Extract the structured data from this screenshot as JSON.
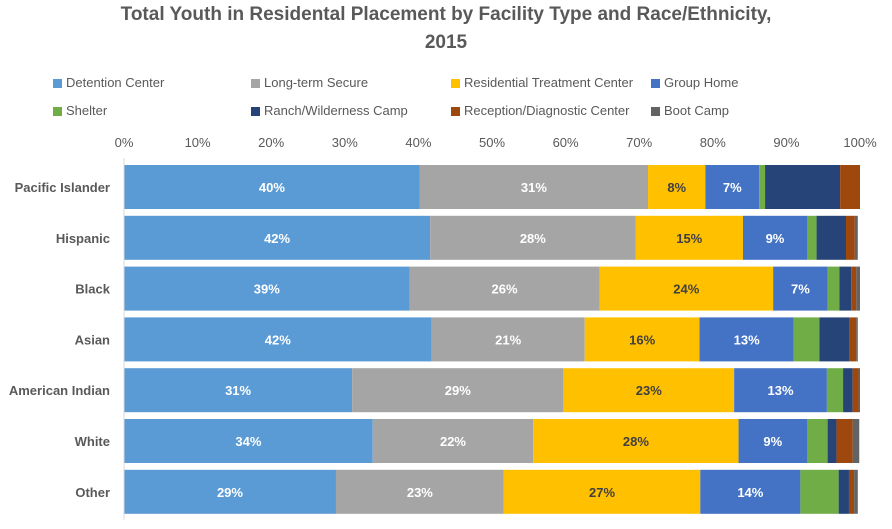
{
  "chart_data": {
    "type": "bar",
    "orientation": "horizontal",
    "stacked": "percent",
    "title_line1": "Total Youth in Residental Placement by Facility Type and Race/Ethnicity,",
    "title_line2": "2015",
    "categories": [
      "Pacific Islander",
      "Hispanic",
      "Black",
      "Asian",
      "American Indian",
      "White",
      "Other"
    ],
    "x_ticks": [
      "0%",
      "10%",
      "20%",
      "30%",
      "40%",
      "50%",
      "60%",
      "70%",
      "80%",
      "90%",
      "100%"
    ],
    "xlim": [
      0,
      100
    ],
    "axis_position": "top",
    "legend_position": "top",
    "grid": false,
    "series": [
      {
        "name": "Detention Center",
        "color": "#5B9BD5",
        "values": [
          40.2,
          41.6,
          38.8,
          41.8,
          31.0,
          33.8,
          28.8
        ]
      },
      {
        "name": "Long-term Secure",
        "color": "#A5A5A5",
        "values": [
          31.0,
          27.9,
          25.8,
          20.8,
          28.7,
          21.8,
          22.8
        ]
      },
      {
        "name": "Residential Treatment Center",
        "color": "#FFC000",
        "values": [
          7.8,
          14.6,
          23.6,
          15.6,
          23.2,
          27.9,
          26.7
        ]
      },
      {
        "name": "Group Home",
        "color": "#4472C4",
        "values": [
          7.3,
          8.7,
          7.4,
          12.8,
          12.6,
          9.3,
          13.6
        ]
      },
      {
        "name": "Shelter",
        "color": "#70AD47",
        "values": [
          0.8,
          1.3,
          1.6,
          3.5,
          2.2,
          2.8,
          5.2
        ]
      },
      {
        "name": "Ranch/Wilderness Camp",
        "color": "#264478",
        "values": [
          10.2,
          4.0,
          1.6,
          4.1,
          1.3,
          1.2,
          1.4
        ]
      },
      {
        "name": "Reception/Diagnostic Center",
        "color": "#9E480E",
        "values": [
          2.7,
          1.2,
          0.7,
          0.9,
          0.8,
          2.2,
          0.7
        ]
      },
      {
        "name": "Boot Camp",
        "color": "#636363",
        "values": [
          0.0,
          0.4,
          0.5,
          0.2,
          0.2,
          0.9,
          0.5
        ]
      }
    ],
    "data_labels": [
      [
        "40%",
        "31%",
        "8%",
        "7%",
        "",
        "",
        "",
        ""
      ],
      [
        "42%",
        "28%",
        "15%",
        "9%",
        "",
        "",
        "",
        ""
      ],
      [
        "39%",
        "26%",
        "24%",
        "7%",
        "",
        "",
        "",
        ""
      ],
      [
        "42%",
        "21%",
        "16%",
        "13%",
        "",
        "",
        "",
        ""
      ],
      [
        "31%",
        "29%",
        "23%",
        "13%",
        "",
        "",
        "",
        ""
      ],
      [
        "34%",
        "22%",
        "28%",
        "9%",
        "",
        "",
        "",
        ""
      ],
      [
        "29%",
        "23%",
        "27%",
        "14%",
        "",
        "",
        "",
        ""
      ]
    ],
    "label_colors": [
      "#FFFFFF",
      "#FFFFFF",
      "#404040",
      "#FFFFFF",
      "#FFFFFF",
      "#FFFFFF",
      "#FFFFFF",
      "#FFFFFF"
    ]
  }
}
